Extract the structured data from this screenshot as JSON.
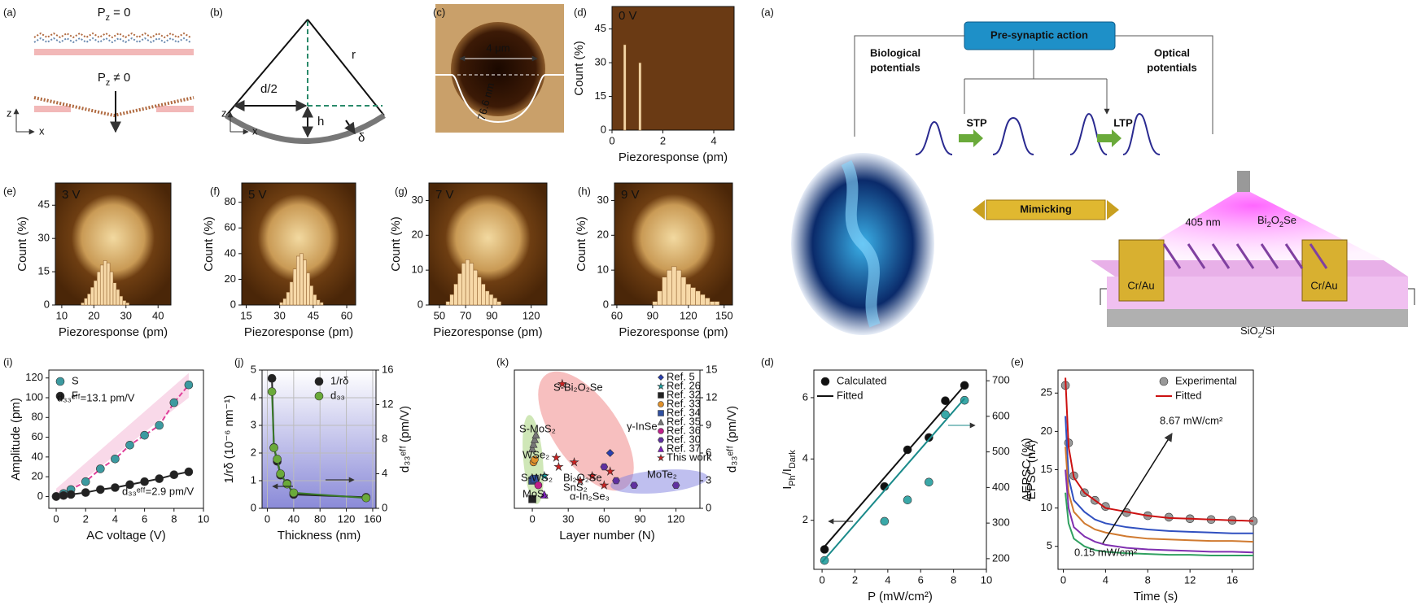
{
  "diagrams": {
    "left_a": {
      "label": "(a)",
      "pz0": [
        "P",
        "z",
        " = 0"
      ],
      "pz1": [
        "P",
        "z",
        " ≠ 0"
      ],
      "z": "z",
      "x": "x"
    },
    "left_b": {
      "label": "(b)",
      "d2": "d/2",
      "h": "h",
      "r": "r",
      "delta": "δ",
      "z": "z",
      "x": "x"
    },
    "left_c": {
      "label": "(c)",
      "width": "4 μm",
      "depth": "76.6 nm"
    },
    "right_a": {
      "label": "(a)",
      "presynaptic": "Pre-synaptic action",
      "bio1": "Biological",
      "bio2": "potentials",
      "opt1": "Optical",
      "opt2": "potentials",
      "stp": "STP",
      "ltp": "LTP",
      "mimicking": "Mimicking",
      "laser": "405 nm",
      "material": [
        "Bi",
        "2",
        "O",
        "2",
        "Se"
      ],
      "electrode_left": "Cr/Au",
      "electrode_right": "Cr/Au",
      "substrate": [
        "SiO",
        "2",
        "/Si"
      ]
    }
  },
  "chart_data": [
    {
      "type": "histogram",
      "panel_label": "(d)",
      "title": "0 V",
      "xlabel": "Piezoresponse (pm)",
      "ylabel": "Count (%)",
      "bins": [
        0.45,
        0.55,
        1.05,
        1.15
      ],
      "counts": [
        38,
        0,
        30
      ],
      "color": "#f5d7a8",
      "xlim": [
        0,
        4.8
      ],
      "xticks": [
        0,
        2,
        4
      ],
      "ylim": [
        0,
        55
      ],
      "yticks": [
        0,
        15,
        30,
        45
      ]
    },
    {
      "type": "histogram",
      "panel_label": "(e)",
      "title": "3 V",
      "xlabel": "Piezoresponse (pm)",
      "ylabel": "Count (%)",
      "bins": [
        16,
        17,
        18,
        19,
        20,
        21,
        22,
        23,
        24,
        25,
        26,
        27,
        28,
        29,
        30,
        31
      ],
      "counts": [
        1,
        3,
        5,
        8,
        11,
        15,
        18,
        20,
        19,
        15,
        10,
        7,
        4,
        2,
        1
      ],
      "color": "#f7d9a8",
      "xlim": [
        8,
        44
      ],
      "xticks": [
        10,
        20,
        30,
        40
      ],
      "ylim": [
        0,
        55
      ],
      "yticks": [
        0,
        15,
        30,
        45
      ]
    },
    {
      "type": "histogram",
      "panel_label": "(f)",
      "title": "5 V",
      "xlabel": "Piezoresponse (pm)",
      "ylabel": "Count (%)",
      "bins": [
        30,
        31.5,
        33,
        34.5,
        36,
        37.5,
        39,
        40.5,
        42,
        43.5,
        45,
        46.5,
        48,
        49.5
      ],
      "counts": [
        2,
        5,
        10,
        18,
        28,
        38,
        40,
        35,
        25,
        15,
        8,
        4,
        2
      ],
      "color": "#f7d9a8",
      "xlim": [
        13,
        64
      ],
      "xticks": [
        15,
        30,
        45,
        60
      ],
      "ylim": [
        0,
        95
      ],
      "yticks": [
        0,
        20,
        40,
        60,
        80
      ]
    },
    {
      "type": "histogram",
      "panel_label": "(g)",
      "title": "7 V",
      "xlabel": "Piezoresponse (pm)",
      "ylabel": "Count (%)",
      "bins": [
        55,
        58,
        61,
        64,
        67,
        70,
        73,
        76,
        79,
        82,
        85,
        88,
        91,
        94,
        97
      ],
      "counts": [
        1,
        3,
        6,
        9,
        12,
        13,
        12,
        10,
        8,
        6,
        4,
        3,
        2,
        1
      ],
      "color": "#f7d9a8",
      "xlim": [
        42,
        132
      ],
      "xticks": [
        50,
        70,
        90,
        120
      ],
      "ylim": [
        0,
        35
      ],
      "yticks": [
        0,
        10,
        20,
        30
      ]
    },
    {
      "type": "histogram",
      "panel_label": "(h)",
      "title": "9 V",
      "xlabel": "Piezoresponse (pm)",
      "ylabel": "Count (%)",
      "bins": [
        90,
        94,
        98,
        102,
        106,
        110,
        114,
        118,
        122,
        126,
        130,
        134,
        138,
        142,
        146
      ],
      "counts": [
        1,
        4,
        8,
        10,
        11,
        10,
        8,
        6,
        5,
        4,
        3,
        2,
        1,
        1
      ],
      "color": "#f7d9a8",
      "xlim": [
        58,
        157
      ],
      "xticks": [
        60,
        90,
        120,
        150
      ],
      "ylim": [
        0,
        35
      ],
      "yticks": [
        0,
        10,
        20,
        30
      ]
    },
    {
      "type": "scatter",
      "panel_label": "(i)",
      "xlabel": "AC voltage (V)",
      "ylabel": "Amplitude (pm)",
      "xlim": [
        -0.5,
        10
      ],
      "xticks": [
        0,
        2,
        4,
        6,
        8,
        10
      ],
      "ylim": [
        -12,
        128
      ],
      "yticks": [
        0,
        20,
        40,
        60,
        80,
        100,
        120
      ],
      "legend": "upper left",
      "series": [
        {
          "name": "S",
          "color": "#3c9aa0",
          "marker": "circle",
          "line": true,
          "line_color": "#e0409a",
          "x": [
            0,
            0.5,
            1,
            2,
            3,
            4,
            5,
            6,
            7,
            8,
            9
          ],
          "values": [
            0,
            3,
            7,
            15,
            28,
            38,
            52,
            62,
            72,
            95,
            113
          ]
        },
        {
          "name": "F",
          "color": "#222222",
          "marker": "circle",
          "line": true,
          "line_color": "#222222",
          "x": [
            0,
            0.5,
            1,
            2,
            3,
            4,
            5,
            6,
            7,
            8,
            9
          ],
          "values": [
            0,
            1,
            2,
            4,
            7,
            9,
            12,
            15,
            18,
            22,
            25
          ]
        }
      ],
      "annotations": [
        "d₃₃ᵉᶠᶠ=13.1 pm/V",
        "d₃₃ᵉᶠᶠ=2.9 pm/V"
      ]
    },
    {
      "type": "scatter",
      "panel_label": "(j)",
      "xlabel": "Thickness (nm)",
      "ylabel": "1/rδ (10⁻⁶ nm⁻¹)",
      "y2label": "d₃₃ᵉᶠᶠ (pm/V)",
      "xlim": [
        -8,
        165
      ],
      "xticks": [
        0,
        40,
        80,
        120,
        160
      ],
      "ylim": [
        0,
        5
      ],
      "yticks": [
        0,
        1,
        2,
        3,
        4,
        5
      ],
      "y2lim": [
        0,
        16
      ],
      "y2ticks": [
        0,
        4,
        8,
        12,
        16
      ],
      "grid": true,
      "legend": "upper right",
      "series": [
        {
          "name": "1/rδ",
          "color": "#222222",
          "marker": "circle",
          "line": true,
          "line_color": "#222222",
          "x": [
            7,
            10,
            15,
            20,
            30,
            40,
            150
          ],
          "values": [
            4.7,
            2.2,
            1.7,
            1.2,
            0.9,
            0.5,
            0.4
          ]
        },
        {
          "name": "d₃₃",
          "color": "#6aaa3a",
          "marker": "circle",
          "line": true,
          "line_color": "#3a7a2a",
          "axis": "y2",
          "x": [
            7,
            10,
            15,
            20,
            30,
            40,
            150
          ],
          "values": [
            13.5,
            7,
            5.7,
            4,
            2.8,
            1.8,
            1.2
          ]
        }
      ]
    },
    {
      "type": "scatter",
      "panel_label": "(k)",
      "xlabel": "Layer number (N)",
      "ylabel": "d₃₃ᵉᶠᶠ (pm/V)",
      "yaxis_side": "right",
      "xlim": [
        -15,
        140
      ],
      "xticks": [
        0,
        30,
        60,
        90,
        120
      ],
      "ylim": [
        0,
        15
      ],
      "yticks": [
        0,
        3,
        6,
        9,
        12,
        15
      ],
      "legend": "upper right",
      "series": [
        {
          "name": "Ref. 5",
          "color": "#2a3fb0",
          "marker": "diamond",
          "x": [
            65
          ],
          "values": [
            6
          ]
        },
        {
          "name": "Ref. 26",
          "color": "#1aa5a5",
          "marker": "star",
          "x": [
            10
          ],
          "values": [
            3.5
          ]
        },
        {
          "name": "Ref. 32",
          "color": "#222222",
          "marker": "square",
          "x": [
            0
          ],
          "values": [
            1
          ]
        },
        {
          "name": "Ref. 33",
          "color": "#e0902a",
          "marker": "circle",
          "x": [
            1,
            2
          ],
          "values": [
            5,
            5.3
          ]
        },
        {
          "name": "Ref. 34",
          "color": "#3050a0",
          "marker": "square",
          "x": [
            0,
            1,
            2
          ],
          "values": [
            3,
            3.1,
            3.2
          ]
        },
        {
          "name": "Ref. 35",
          "color": "#777777",
          "marker": "triangle",
          "x": [
            0,
            1,
            2,
            3
          ],
          "values": [
            6.5,
            7,
            7.5,
            8
          ]
        },
        {
          "name": "Ref. 36",
          "color": "#c0208a",
          "marker": "circle",
          "x": [
            5
          ],
          "values": [
            2.5
          ]
        },
        {
          "name": "Ref. 30",
          "color": "#6030a0",
          "marker": "hexagon",
          "x": [
            60,
            70,
            85,
            120
          ],
          "values": [
            4.5,
            3,
            2.5,
            2.5
          ]
        },
        {
          "name": "Ref. 37",
          "color": "#8020c0",
          "marker": "triangle",
          "x": [
            10
          ],
          "values": [
            1.5
          ]
        },
        {
          "name": "This work",
          "color": "#cc2222",
          "marker": "star",
          "x": [
            25,
            20,
            35,
            40,
            50,
            60,
            65,
            22
          ],
          "values": [
            13.5,
            5.5,
            5,
            3,
            3.5,
            2.5,
            4,
            4.5
          ]
        }
      ],
      "annotations": [
        "S-Bi₂O₂Se",
        "γ-InSe",
        "S-MoS₂",
        "WSe₂",
        "S-WS₂",
        "MoS₂",
        "Bi₂O₂Se",
        "SnS₂",
        "α-In₂Se₃",
        "MoTe₂"
      ]
    },
    {
      "type": "scatter",
      "panel_label": "(d)",
      "xlabel": "P (mW/cm²)",
      "ylabel": [
        "I",
        "Ph",
        "/I",
        "Dark"
      ],
      "y2label": "ΔEPSC (%)",
      "xlim": [
        -0.5,
        10
      ],
      "xticks": [
        0,
        2,
        4,
        6,
        8,
        10
      ],
      "ylim": [
        0.4,
        6.9
      ],
      "yticks": [
        2,
        4,
        6
      ],
      "y2lim": [
        170,
        730
      ],
      "y2ticks": [
        200,
        300,
        400,
        500,
        600,
        700
      ],
      "legend": "upper left",
      "series": [
        {
          "name": "Calculated",
          "color": "#111111",
          "marker": "circle",
          "x": [
            0.15,
            3.8,
            5.2,
            6.5,
            7.5,
            8.67
          ],
          "values": [
            1.05,
            3.1,
            4.3,
            4.7,
            5.9,
            6.4
          ]
        },
        {
          "name": "Fitted",
          "color": "#111111",
          "line": true,
          "x": [
            0,
            8.67
          ],
          "values": [
            1.05,
            6.4
          ]
        },
        {
          "color": "#3aa8a8",
          "marker": "circle",
          "axis": "y2",
          "x": [
            0.15,
            3.8,
            5.2,
            6.5,
            7.5,
            8.67
          ],
          "values": [
            195,
            305,
            365,
            415,
            605,
            645
          ]
        },
        {
          "color": "#1a8a8a",
          "line": true,
          "axis": "y2",
          "x": [
            0,
            8.67
          ],
          "values": [
            190,
            650
          ]
        }
      ]
    },
    {
      "type": "line",
      "panel_label": "(e)",
      "xlabel": "Time (s)",
      "ylabel": "EPSC (nA)",
      "xlim": [
        -0.5,
        18
      ],
      "xticks": [
        0,
        4,
        8,
        12,
        16
      ],
      "ylim": [
        2,
        28
      ],
      "yticks": [
        5,
        10,
        15,
        20,
        25
      ],
      "legend": "upper right",
      "series": [
        {
          "name": "Experimental",
          "color": "#999999",
          "marker": "circle",
          "x": [
            0.2,
            0.5,
            1,
            2,
            3,
            4,
            6,
            8,
            10,
            12,
            14,
            16,
            18
          ],
          "values": [
            26,
            18.5,
            14.2,
            12,
            11,
            10.2,
            9.4,
            9,
            8.8,
            8.6,
            8.5,
            8.4,
            8.3
          ]
        },
        {
          "name": "Fitted",
          "color": "#cc1111",
          "line": true,
          "x": [
            0.2,
            0.5,
            1,
            2,
            3,
            4,
            6,
            8,
            10,
            12,
            14,
            16,
            18
          ],
          "values": [
            27,
            18,
            14,
            12,
            11,
            10,
            9.5,
            9,
            8.7,
            8.6,
            8.5,
            8.4,
            8.3
          ]
        },
        {
          "color": "#3050c0",
          "line": true,
          "x": [
            0.2,
            0.5,
            1,
            2,
            3,
            4,
            6,
            8,
            10,
            12,
            14,
            16,
            18
          ],
          "values": [
            22,
            14,
            11,
            9.5,
            8.5,
            8,
            7.5,
            7.2,
            7,
            6.9,
            6.8,
            6.7,
            6.7
          ]
        },
        {
          "color": "#d07a30",
          "line": true,
          "x": [
            0.2,
            0.5,
            1,
            2,
            3,
            4,
            6,
            8,
            10,
            12,
            14,
            16,
            18
          ],
          "values": [
            18,
            12,
            9.5,
            8,
            7.2,
            6.8,
            6.3,
            6,
            5.9,
            5.8,
            5.7,
            5.7,
            5.6
          ]
        },
        {
          "color": "#8030b0",
          "line": true,
          "x": [
            0.2,
            0.5,
            1,
            2,
            3,
            4,
            6,
            8,
            10,
            12,
            14,
            16,
            18
          ],
          "values": [
            15,
            10,
            7.5,
            6.3,
            5.6,
            5.2,
            4.8,
            4.6,
            4.5,
            4.4,
            4.3,
            4.3,
            4.2
          ]
        },
        {
          "color": "#30a060",
          "line": true,
          "x": [
            0.2,
            0.5,
            1,
            2,
            3,
            4,
            6,
            8,
            10,
            12,
            14,
            16,
            18
          ],
          "values": [
            12,
            8,
            6,
            5,
            4.5,
            4.3,
            4.1,
            4,
            3.9,
            3.9,
            3.8,
            3.8,
            3.8
          ]
        }
      ],
      "annotations": [
        "8.67 mW/cm²",
        "0.15 mW/cm²"
      ]
    }
  ]
}
